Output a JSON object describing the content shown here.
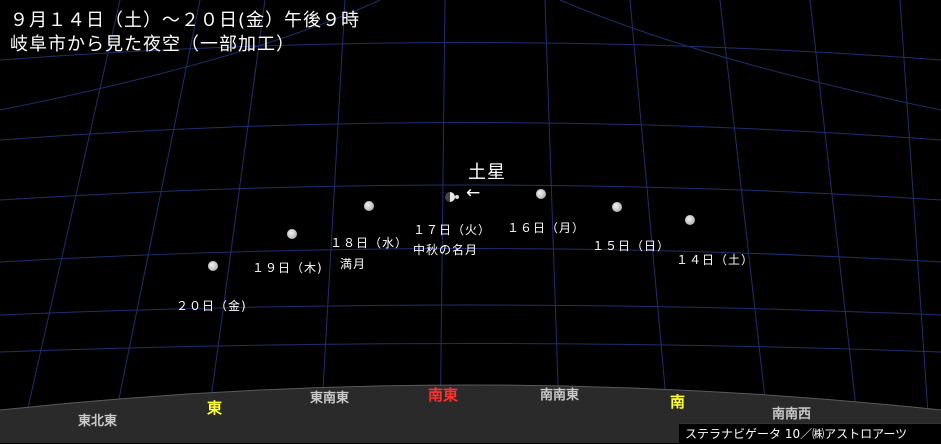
{
  "title": {
    "line1": "９月１４日（土）～２０日(金）午後９時",
    "line2": "岐阜市から見た夜空（一部加工）"
  },
  "saturn": {
    "label": "土星",
    "arrow": "←"
  },
  "moons": [
    {
      "date": "２０日（金)",
      "note": ""
    },
    {
      "date": "１９日（木)",
      "note": ""
    },
    {
      "date": "１８日（水）",
      "note": "満月"
    },
    {
      "date": "１７日（火）",
      "note": "中秋の名月"
    },
    {
      "date": "１６日（月）",
      "note": ""
    },
    {
      "date": "１５日（日）",
      "note": ""
    },
    {
      "date": "１４日（土）",
      "note": ""
    }
  ],
  "directions": [
    {
      "label": "東北東",
      "color": "#c9c9c9"
    },
    {
      "label": "東",
      "color": "#ffff33"
    },
    {
      "label": "東南東",
      "color": "#c9c9c9"
    },
    {
      "label": "南東",
      "color": "#ff3030"
    },
    {
      "label": "南南東",
      "color": "#c9c9c9"
    },
    {
      "label": "南",
      "color": "#ffff33"
    },
    {
      "label": "南南西",
      "color": "#c9c9c9"
    }
  ],
  "credit": "ステラナビゲータ 10／㈱アストロアーツ",
  "colors": {
    "sky": "#000000",
    "grid": "#1e2f6e",
    "ground": "#2a2a2a"
  }
}
